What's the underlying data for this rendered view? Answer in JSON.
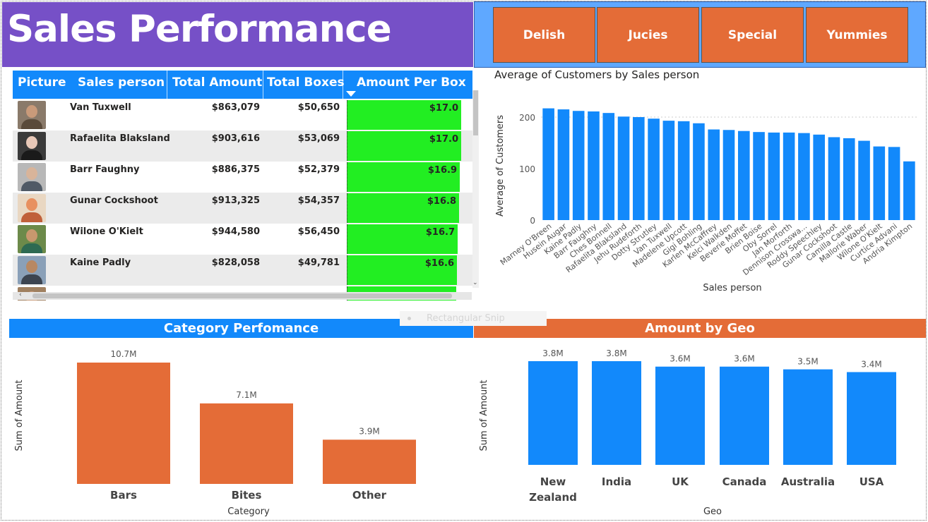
{
  "title": "Sales Performance",
  "slicers": [
    "Delish",
    "Jucies",
    "Special",
    "Yummies"
  ],
  "table": {
    "headers": [
      "Picture",
      "Sales person",
      "Total Amount",
      "Total Boxes",
      "Amount Per Box"
    ],
    "rows": [
      {
        "name": "Van Tuxwell",
        "amount": "$863,079",
        "boxes": "$50,650",
        "per_box": "$17.0",
        "per_box_value": 17.0
      },
      {
        "name": "Rafaelita Blaksland",
        "amount": "$903,616",
        "boxes": "$53,069",
        "per_box": "$17.0",
        "per_box_value": 17.0
      },
      {
        "name": "Barr Faughny",
        "amount": "$886,375",
        "boxes": "$52,379",
        "per_box": "$16.9",
        "per_box_value": 16.9
      },
      {
        "name": "Gunar Cockshoot",
        "amount": "$913,325",
        "boxes": "$54,357",
        "per_box": "$16.8",
        "per_box_value": 16.8
      },
      {
        "name": "Wilone O'Kielt",
        "amount": "$944,580",
        "boxes": "$56,450",
        "per_box": "$16.7",
        "per_box_value": 16.7
      },
      {
        "name": "Kaine Padly",
        "amount": "$828,058",
        "boxes": "$49,781",
        "per_box": "$16.6",
        "per_box_value": 16.6
      }
    ]
  },
  "snip_overlay": "Rectangular Snip",
  "colors": {
    "purple": "#7650c7",
    "orange": "#e46c37",
    "blue": "#1289fb",
    "green": "#22ee22"
  },
  "chart_data": [
    {
      "type": "bar",
      "title": "Average of Customers by Sales person",
      "xlabel": "Sales person",
      "ylabel": "Average of Customers",
      "ylim": [
        0,
        220
      ],
      "yticks": [
        0,
        100,
        200
      ],
      "categories": [
        "Marney O'Breen",
        "Husein Augar",
        "Kaine Padly",
        "Barr Faughny",
        "Ches Bonnell",
        "Rafaelita Blaksland",
        "Jehu Rudeforth",
        "Dotty Strutley",
        "Van Tuxwell",
        "Madelene Upcott",
        "Gigi Bohling",
        "Karlen McCaffrey",
        "Kelci Walkden",
        "Beverie Moffet",
        "Brien Boise",
        "Oby Sorrel",
        "Jan Morforth",
        "Dennison Crosswa...",
        "Roddy Speechley",
        "Gunar Cockshoot",
        "Camilla Castle",
        "Mallorie Waber",
        "Wilone O'Kielt",
        "Curtice Advani",
        "Andria Kimpton"
      ],
      "values": [
        217,
        215,
        212,
        211,
        208,
        201,
        200,
        197,
        193,
        192,
        188,
        176,
        175,
        173,
        171,
        170,
        170,
        169,
        166,
        161,
        159,
        154,
        143,
        142,
        114
      ]
    },
    {
      "type": "bar",
      "title": "Category Perfomance",
      "xlabel": "Category",
      "ylabel": "Sum of Amount",
      "categories": [
        "Bars",
        "Bites",
        "Other"
      ],
      "values": [
        10.7,
        7.1,
        3.9
      ],
      "data_labels": [
        "10.7M",
        "7.1M",
        "3.9M"
      ],
      "unit": "M"
    },
    {
      "type": "bar",
      "title": "Amount by Geo",
      "xlabel": "Geo",
      "ylabel": "Sum of Amount",
      "categories": [
        "New Zealand",
        "India",
        "UK",
        "Canada",
        "Australia",
        "USA"
      ],
      "values": [
        3.8,
        3.8,
        3.6,
        3.6,
        3.5,
        3.4
      ],
      "data_labels": [
        "3.8M",
        "3.8M",
        "3.6M",
        "3.6M",
        "3.5M",
        "3.4M"
      ],
      "unit": "M"
    }
  ]
}
